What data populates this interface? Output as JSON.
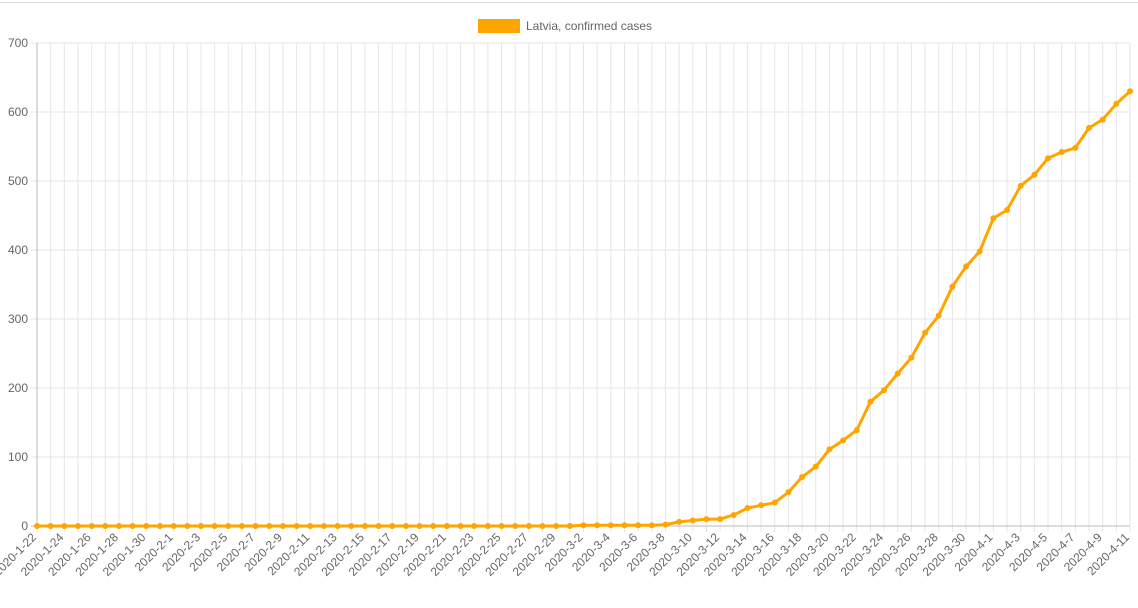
{
  "chart_data": {
    "type": "line",
    "series": [
      {
        "name": "Latvia, confirmed cases",
        "color": "#ffa500",
        "values": [
          0,
          0,
          0,
          0,
          0,
          0,
          0,
          0,
          0,
          0,
          0,
          0,
          0,
          0,
          0,
          0,
          0,
          0,
          0,
          0,
          0,
          0,
          0,
          0,
          0,
          0,
          0,
          0,
          0,
          0,
          0,
          0,
          0,
          0,
          0,
          0,
          0,
          0,
          0,
          0,
          1,
          1,
          1,
          1,
          1,
          1,
          2,
          6,
          8,
          10,
          10,
          16,
          26,
          30,
          34,
          49,
          71,
          86,
          111,
          124,
          139,
          180,
          197,
          221,
          244,
          280,
          305,
          347,
          376,
          398,
          446,
          458,
          493,
          509,
          533,
          542,
          548,
          577,
          589,
          612,
          630
        ]
      }
    ],
    "categories": [
      "2020-1-22",
      null,
      "2020-1-24",
      null,
      "2020-1-26",
      null,
      "2020-1-28",
      null,
      "2020-1-30",
      null,
      "2020-2-1",
      null,
      "2020-2-3",
      null,
      "2020-2-5",
      null,
      "2020-2-7",
      null,
      "2020-2-9",
      null,
      "2020-2-11",
      null,
      "2020-2-13",
      null,
      "2020-2-15",
      null,
      "2020-2-17",
      null,
      "2020-2-19",
      null,
      "2020-2-21",
      null,
      "2020-2-23",
      null,
      "2020-2-25",
      null,
      "2020-2-27",
      null,
      "2020-2-29",
      null,
      "2020-3-2",
      null,
      "2020-3-4",
      null,
      "2020-3-6",
      null,
      "2020-3-8",
      null,
      "2020-3-10",
      null,
      "2020-3-12",
      null,
      "2020-3-14",
      null,
      "2020-3-16",
      null,
      "2020-3-18",
      null,
      "2020-3-20",
      null,
      "2020-3-22",
      null,
      "2020-3-24",
      null,
      "2020-3-26",
      null,
      "2020-3-28",
      null,
      "2020-3-30",
      null,
      "2020-4-1",
      null,
      "2020-4-3",
      null,
      "2020-4-5",
      null,
      "2020-4-7",
      null,
      "2020-4-9",
      null,
      "2020-4-11"
    ],
    "ylim": [
      0,
      700
    ],
    "yticks": [
      0,
      100,
      200,
      300,
      400,
      500,
      600,
      700
    ],
    "grid": true,
    "legend": "top"
  }
}
